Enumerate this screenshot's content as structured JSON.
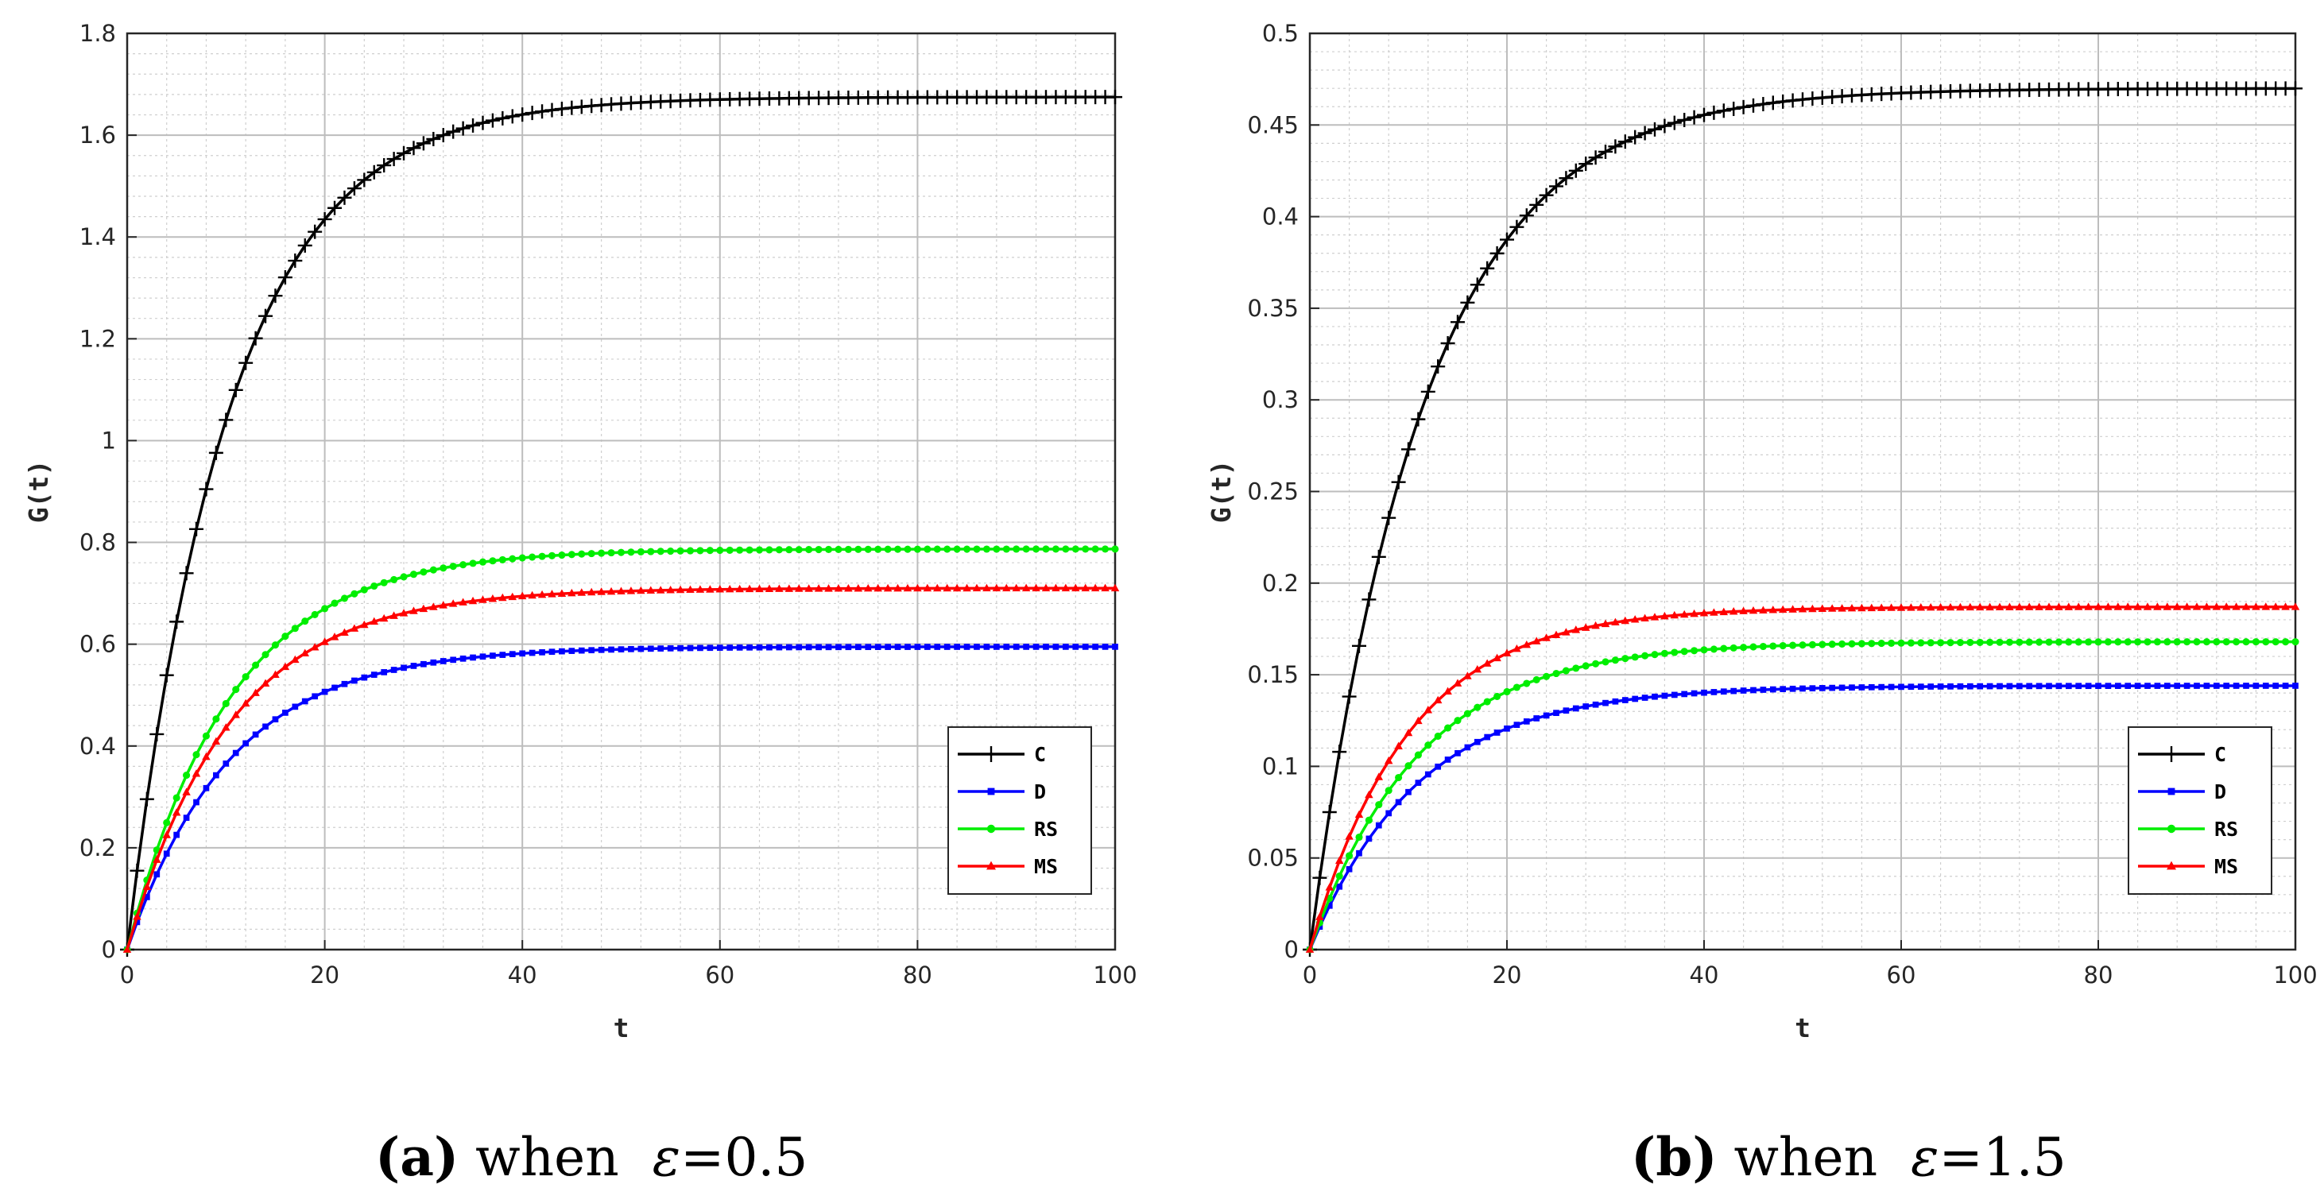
{
  "chart_data": [
    {
      "type": "line",
      "panel": "a",
      "xlabel": "t",
      "ylabel": "G(t)",
      "xlim": [
        0,
        100
      ],
      "ylim": [
        0,
        1.8
      ],
      "xticks": [
        0,
        20,
        40,
        60,
        80,
        100
      ],
      "yticks": [
        0,
        0.2,
        0.4,
        0.6,
        0.8,
        1,
        1.2,
        1.4,
        1.6,
        1.8
      ],
      "ytick_labels": [
        "0",
        "0.2",
        "0.4",
        "0.6",
        "0.8",
        "1",
        "1.2",
        "1.4",
        "1.6",
        "1.8"
      ],
      "grid": true,
      "legend_position": "bottom-right",
      "caption": {
        "label": "(a)",
        "text": " when  ",
        "symbol": "ε",
        "value": "=0.5"
      },
      "series": [
        {
          "name": "C",
          "color": "#000000",
          "marker": "plus",
          "asymptote": 1.675,
          "tau": 10.3
        },
        {
          "name": "D",
          "color": "#0000ff",
          "marker": "square",
          "asymptote": 0.595,
          "tau": 10.5
        },
        {
          "name": "RS",
          "color": "#00ee00",
          "marker": "circle",
          "asymptote": 0.787,
          "tau": 10.5
        },
        {
          "name": "MS",
          "color": "#ff0000",
          "marker": "triangle",
          "asymptote": 0.71,
          "tau": 10.5
        }
      ]
    },
    {
      "type": "line",
      "panel": "b",
      "xlabel": "t",
      "ylabel": "G(t)",
      "xlim": [
        0,
        100
      ],
      "ylim": [
        0,
        0.5
      ],
      "xticks": [
        0,
        20,
        40,
        60,
        80,
        100
      ],
      "yticks": [
        0,
        0.05,
        0.1,
        0.15,
        0.2,
        0.25,
        0.3,
        0.35,
        0.4,
        0.45,
        0.5
      ],
      "ytick_labels": [
        "0",
        "0.05",
        "0.1",
        "0.15",
        "0.2",
        "0.25",
        "0.3",
        "0.35",
        "0.4",
        "0.45",
        "0.5"
      ],
      "grid": true,
      "legend_position": "bottom-right",
      "caption": {
        "label": "(b)",
        "text": " when  ",
        "symbol": "ε",
        "value": "=1.5"
      },
      "series": [
        {
          "name": "C",
          "color": "#000000",
          "marker": "plus",
          "asymptote": 0.47,
          "tau": 11.5
        },
        {
          "name": "D",
          "color": "#0000ff",
          "marker": "square",
          "asymptote": 0.144,
          "tau": 11.0
        },
        {
          "name": "RS",
          "color": "#00ee00",
          "marker": "circle",
          "asymptote": 0.168,
          "tau": 11.0
        },
        {
          "name": "MS",
          "color": "#ff0000",
          "marker": "triangle",
          "asymptote": 0.187,
          "tau": 10.0
        }
      ]
    }
  ]
}
